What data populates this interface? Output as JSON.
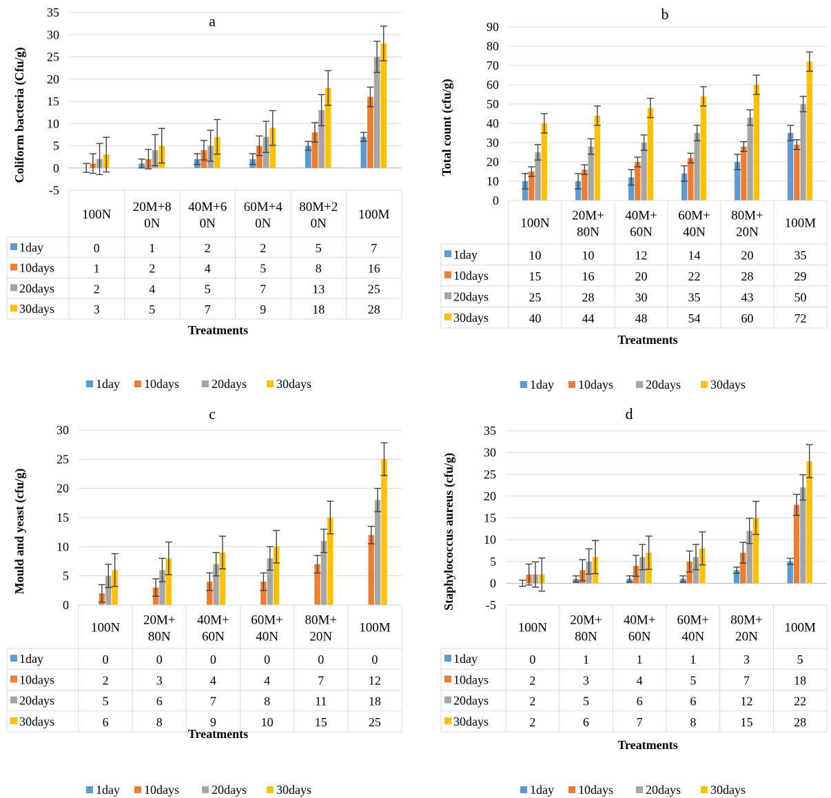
{
  "colors": {
    "1day": "#5B9BD5",
    "10days": "#ED7D31",
    "20days": "#A5A5A5",
    "30days": "#FFC000",
    "grid": "#D9D9D9",
    "err": "#404040"
  },
  "chart_data": [
    {
      "type": "bar",
      "title": "a",
      "ylabel": "Coliform bacteria (Cfu/g)",
      "xlabel": "Treatments",
      "ylim": [
        -5,
        35
      ],
      "ystep": 5,
      "grid": true,
      "legend": "bottom",
      "categories": [
        "100N",
        "20M+8\n0N",
        "40M+6\n0N",
        "60M+4\n0N",
        "80M+2\n0N",
        "100M"
      ],
      "series": [
        {
          "name": "1day",
          "values": [
            0,
            1,
            2,
            2,
            5,
            7
          ],
          "err": [
            1,
            1,
            1.2,
            1.2,
            1,
            1
          ]
        },
        {
          "name": "10days",
          "values": [
            1,
            2,
            4,
            5,
            8,
            16
          ],
          "err": [
            2.2,
            2.2,
            2.2,
            2.2,
            2.2,
            2.2
          ]
        },
        {
          "name": "20days",
          "values": [
            2,
            4,
            5,
            7,
            13,
            25
          ],
          "err": [
            3.5,
            3.5,
            3.5,
            3.5,
            3.5,
            3.5
          ]
        },
        {
          "name": "30days",
          "values": [
            3,
            5,
            7,
            9,
            18,
            28
          ],
          "err": [
            3.9,
            3.9,
            3.9,
            3.9,
            3.9,
            3.9
          ]
        }
      ]
    },
    {
      "type": "bar",
      "title": "b",
      "ylabel": "Total count (cfu/g)",
      "xlabel": "Treatments",
      "ylim": [
        0,
        90
      ],
      "ystep": 10,
      "grid": true,
      "legend": "bottom",
      "categories": [
        "100N",
        "20M+\n80N",
        "40M+\n60N",
        "60M+\n40N",
        "80M+\n20N",
        "100M"
      ],
      "series": [
        {
          "name": "1day",
          "values": [
            10,
            10,
            12,
            14,
            20,
            35
          ],
          "err": [
            4,
            4,
            4,
            4,
            4,
            4
          ]
        },
        {
          "name": "10days",
          "values": [
            15,
            16,
            20,
            22,
            28,
            29
          ],
          "err": [
            2.5,
            2.5,
            2.5,
            2.5,
            2.5,
            2.5
          ]
        },
        {
          "name": "20days",
          "values": [
            25,
            28,
            30,
            35,
            43,
            50
          ],
          "err": [
            4,
            4,
            4,
            4,
            4,
            4
          ]
        },
        {
          "name": "30days",
          "values": [
            40,
            44,
            48,
            54,
            60,
            72
          ],
          "err": [
            5,
            5,
            5,
            5,
            5,
            5
          ]
        }
      ]
    },
    {
      "type": "bar",
      "title": "c",
      "ylabel": "Mould and yeast (cfu/g)",
      "xlabel": "Treatments",
      "ylim": [
        0,
        30
      ],
      "ystep": 5,
      "grid": true,
      "legend": "bottom",
      "categories": [
        "100N",
        "20M+\n80N",
        "40M+\n60N",
        "60M+\n40N",
        "80M+\n20N",
        "100M"
      ],
      "series": [
        {
          "name": "1day",
          "values": [
            0,
            0,
            0,
            0,
            0,
            0
          ],
          "err": [
            0,
            0,
            0,
            0,
            0,
            0
          ]
        },
        {
          "name": "10days",
          "values": [
            2,
            3,
            4,
            4,
            7,
            12
          ],
          "err": [
            1.5,
            1.5,
            1.5,
            1.5,
            1.5,
            1.5
          ]
        },
        {
          "name": "20days",
          "values": [
            5,
            6,
            7,
            8,
            11,
            18
          ],
          "err": [
            2,
            2,
            2,
            2,
            2,
            2
          ]
        },
        {
          "name": "30days",
          "values": [
            6,
            8,
            9,
            10,
            15,
            25
          ],
          "err": [
            2.8,
            2.8,
            2.8,
            2.8,
            2.8,
            2.8
          ]
        }
      ]
    },
    {
      "type": "bar",
      "title": "d",
      "ylabel": "Staphylococcus aureus (cfu/g)",
      "xlabel": "Treatments",
      "ylim": [
        -5,
        35
      ],
      "ystep": 5,
      "grid": true,
      "legend": "bottom",
      "categories": [
        "100N",
        "20M+\n80N",
        "40M+\n60N",
        "60M+\n40N",
        "80M+\n20N",
        "100M"
      ],
      "series": [
        {
          "name": "1day",
          "values": [
            0,
            1,
            1,
            1,
            3,
            5
          ],
          "err": [
            0.7,
            0.7,
            0.7,
            0.7,
            0.7,
            0.7
          ]
        },
        {
          "name": "10days",
          "values": [
            2,
            3,
            4,
            5,
            7,
            18
          ],
          "err": [
            2.4,
            2.4,
            2.4,
            2.4,
            2.4,
            2.4
          ]
        },
        {
          "name": "20days",
          "values": [
            2,
            5,
            6,
            6,
            12,
            22
          ],
          "err": [
            2.9,
            2.9,
            2.9,
            2.9,
            2.9,
            2.9
          ]
        },
        {
          "name": "30days",
          "values": [
            2,
            6,
            7,
            8,
            15,
            28
          ],
          "err": [
            3.8,
            3.8,
            3.8,
            3.8,
            3.8,
            3.8
          ]
        }
      ]
    }
  ]
}
